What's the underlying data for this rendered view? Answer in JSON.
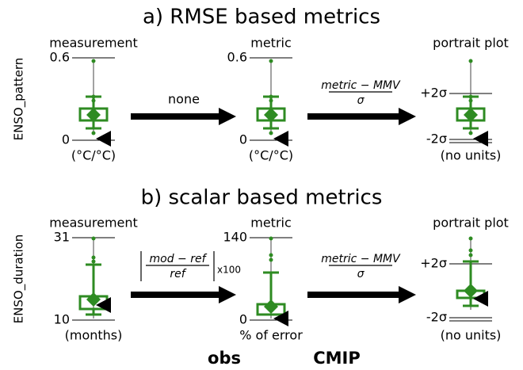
{
  "panels": [
    {
      "title": "a) RMSE based metrics",
      "ylabel": "ENSO_pattern",
      "columns": [
        {
          "header": "measurement",
          "ticks": [
            "0.6",
            "0"
          ],
          "units": "(°C/°C)"
        },
        {
          "header": "metric",
          "ticks": [
            "0.6",
            "0"
          ],
          "units": "(°C/°C)"
        },
        {
          "header": "portrait plot",
          "ticks": [
            "+2σ",
            "-2σ"
          ],
          "units": "(no units)"
        }
      ],
      "arrows": [
        {
          "label": "none"
        },
        {
          "numerator": "metric − MMV",
          "denominator": "σ"
        }
      ]
    },
    {
      "title": "b) scalar based metrics",
      "ylabel": "ENSO_duration",
      "columns": [
        {
          "header": "measurement",
          "ticks": [
            "31",
            "10"
          ],
          "units": "(months)"
        },
        {
          "header": "metric",
          "ticks": [
            "140",
            "0"
          ],
          "units": "% of error"
        },
        {
          "header": "portrait plot",
          "ticks": [
            "+2σ",
            "-2σ"
          ],
          "units": "(no units)"
        }
      ],
      "arrows": [
        {
          "numerator": "mod − ref",
          "denominator": "ref",
          "factor": "x100"
        },
        {
          "numerator": "metric − MMV",
          "denominator": "σ"
        }
      ]
    }
  ],
  "legend": [
    "obs",
    "CMIP"
  ]
}
